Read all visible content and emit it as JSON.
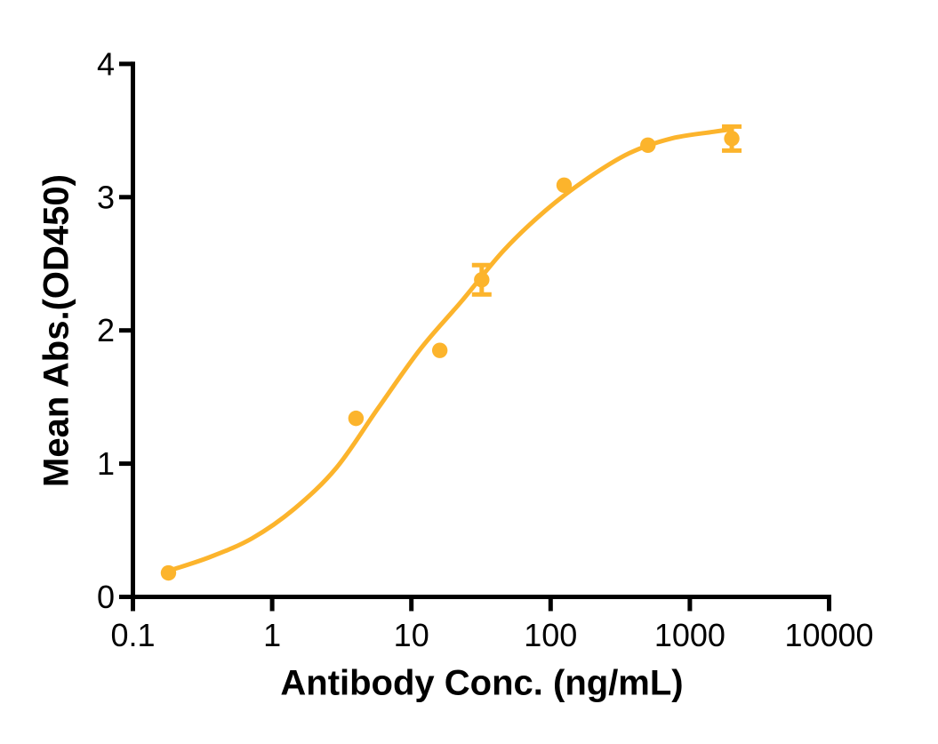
{
  "chart_data": {
    "type": "scatter",
    "title": "",
    "xlabel": "Antibody Conc. (ng/mL)",
    "ylabel": "Mean Abs.(OD450)",
    "x_scale": "log",
    "y_scale": "linear",
    "xlim": [
      0.1,
      10000
    ],
    "ylim": [
      0,
      4
    ],
    "grid": false,
    "legend": null,
    "x_ticks": {
      "values": [
        0.1,
        1,
        10,
        100,
        1000,
        10000
      ],
      "labels": [
        "0.1",
        "1",
        "10",
        "100",
        "1000",
        "10000"
      ]
    },
    "y_ticks": {
      "values": [
        0,
        1,
        2,
        3,
        4
      ],
      "labels": [
        "0",
        "1",
        "2",
        "3",
        "4"
      ]
    },
    "axis_color": "#000000",
    "series": [
      {
        "name": "Mean Abs.(OD450)",
        "marker": "circle",
        "color": "#FCB42C",
        "x": [
          0.18,
          4,
          16,
          32,
          125,
          500,
          2000
        ],
        "y": [
          0.18,
          1.34,
          1.85,
          2.38,
          3.09,
          3.39,
          3.44
        ],
        "y_err": [
          0,
          0,
          0,
          0.11,
          0,
          0,
          0.09
        ]
      }
    ],
    "fit_curve": {
      "type": "4PL sigmoid fit",
      "color": "#FCB42C",
      "points": [
        [
          0.18,
          0.195
        ],
        [
          0.36,
          0.3
        ],
        [
          0.72,
          0.44
        ],
        [
          1.44,
          0.66
        ],
        [
          2.9,
          0.97
        ],
        [
          5.8,
          1.42
        ],
        [
          11.6,
          1.86
        ],
        [
          23,
          2.22
        ],
        [
          46,
          2.6
        ],
        [
          92,
          2.9
        ],
        [
          184,
          3.14
        ],
        [
          368,
          3.33
        ],
        [
          736,
          3.44
        ],
        [
          1472,
          3.49
        ],
        [
          2000,
          3.51
        ]
      ]
    }
  }
}
